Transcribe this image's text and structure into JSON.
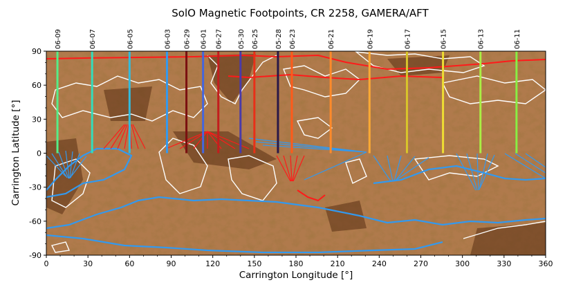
{
  "chart_data": {
    "type": "map",
    "title": "SolO Magnetic Footpoints, CR 2258, GAMERA/AFT",
    "xlabel": "Carrington Longitude [°]",
    "ylabel": "Carrington Latitude [°]",
    "xlim": [
      0,
      360
    ],
    "ylim": [
      -90,
      90
    ],
    "x_ticks": [
      0,
      30,
      60,
      90,
      120,
      150,
      180,
      210,
      240,
      270,
      300,
      330,
      360
    ],
    "y_ticks": [
      -90,
      -60,
      -30,
      0,
      30,
      60,
      90
    ],
    "background": "synoptic solar magnetic field map (copper colormap) with white and colored polarity-inversion contours",
    "colors": {
      "pos_polarity_line": "#ff1a1a",
      "neg_polarity_line": "#3399ee",
      "contour": "#ffffff"
    },
    "date_markers": [
      {
        "label": "06-09",
        "lon": 8,
        "color": "#55ee88"
      },
      {
        "label": "06-07",
        "lon": 33,
        "color": "#33ddbb"
      },
      {
        "label": "06-05",
        "lon": 60,
        "color": "#33bbdd"
      },
      {
        "label": "06-03",
        "lon": 87,
        "color": "#3399ee"
      },
      {
        "label": "06-29",
        "lon": 101,
        "color": "#7a1010"
      },
      {
        "label": "06-01",
        "lon": 113,
        "color": "#4466dd"
      },
      {
        "label": "06-27",
        "lon": 124,
        "color": "#c21e1e"
      },
      {
        "label": "05-30",
        "lon": 140,
        "color": "#4a3aa8"
      },
      {
        "label": "06-25",
        "lon": 150,
        "color": "#e83018"
      },
      {
        "label": "05-28",
        "lon": 167,
        "color": "#2a1848"
      },
      {
        "label": "06-23",
        "lon": 177,
        "color": "#ff5a1a"
      },
      {
        "label": "06-21",
        "lon": 205,
        "color": "#ff8a2a"
      },
      {
        "label": "06-19",
        "lon": 233,
        "color": "#ffaa33"
      },
      {
        "label": "06-17",
        "lon": 260,
        "color": "#d8c52a"
      },
      {
        "label": "06-15",
        "lon": 286,
        "color": "#eedd33"
      },
      {
        "label": "06-13",
        "lon": 313,
        "color": "#aaee44"
      },
      {
        "label": "06-11",
        "lon": 339,
        "color": "#88ee44"
      }
    ]
  }
}
